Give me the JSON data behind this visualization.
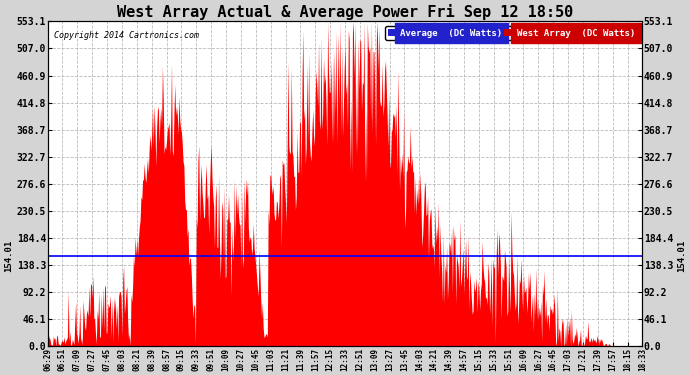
{
  "title": "West Array Actual & Average Power Fri Sep 12 18:50",
  "copyright": "Copyright 2014 Cartronics.com",
  "average_value": 154.01,
  "y_ticks": [
    0.0,
    46.1,
    92.2,
    138.3,
    184.4,
    230.5,
    276.6,
    322.7,
    368.7,
    414.8,
    460.9,
    507.0,
    553.1
  ],
  "y_max": 553.1,
  "y_min": 0.0,
  "legend_avg_label": "Average  (DC Watts)",
  "legend_west_label": "West Array  (DC Watts)",
  "avg_color": "#0000ff",
  "west_color": "#ff0000",
  "avg_legend_bg": "#0000cc",
  "west_legend_bg": "#cc0000",
  "bg_color": "#ffffff",
  "grid_color": "#aaaaaa",
  "x_tick_labels": [
    "06:29",
    "06:51",
    "07:09",
    "07:27",
    "07:45",
    "08:03",
    "08:21",
    "08:39",
    "08:57",
    "09:15",
    "09:33",
    "09:51",
    "10:09",
    "10:27",
    "10:45",
    "11:03",
    "11:21",
    "11:39",
    "11:57",
    "12:15",
    "12:33",
    "12:51",
    "13:09",
    "13:27",
    "13:45",
    "14:03",
    "14:21",
    "14:39",
    "14:57",
    "15:15",
    "15:33",
    "15:51",
    "16:09",
    "16:27",
    "16:45",
    "17:03",
    "17:21",
    "17:39",
    "17:57",
    "18:15",
    "18:33"
  ],
  "figsize": [
    6.9,
    3.75
  ],
  "dpi": 100
}
